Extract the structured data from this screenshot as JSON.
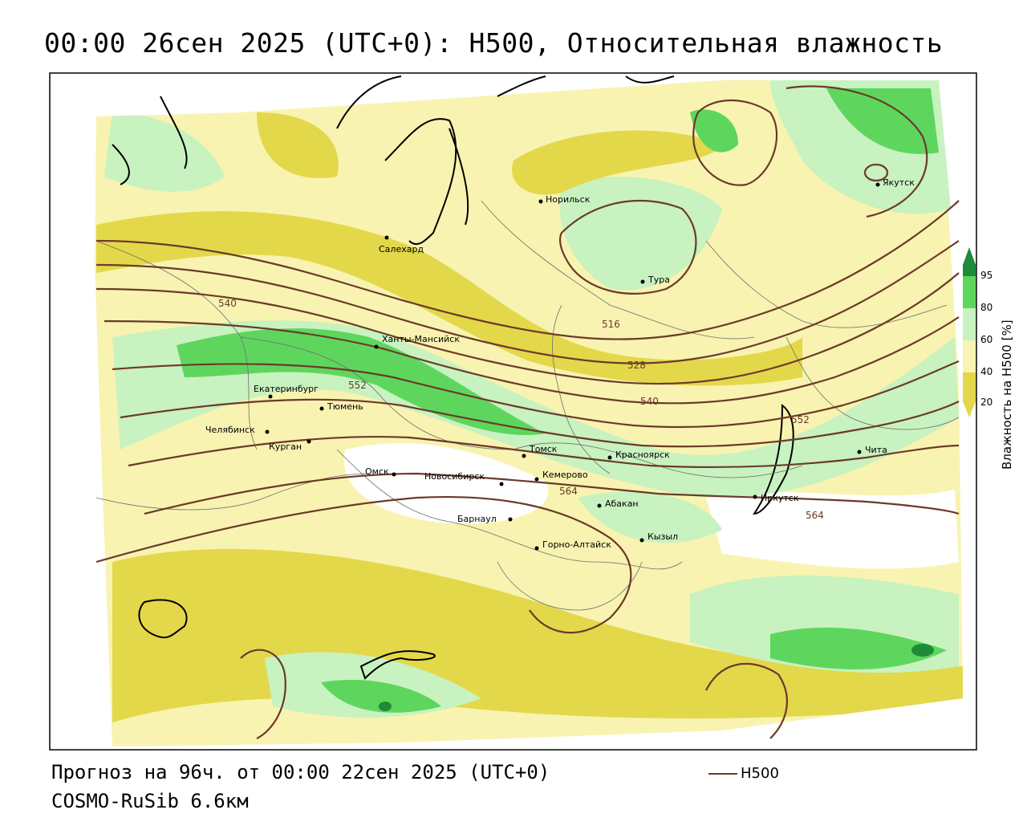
{
  "title": "00:00 26сен 2025 (UTC+0): H500, Относительная влажность",
  "footer": {
    "forecast": "Прогноз на 96ч. от 00:00 22сен 2025 (UTC+0)",
    "model": "COSMO-RuSib 6.6км"
  },
  "legend": {
    "line_label": "H500",
    "line_color": "#6b3a2a"
  },
  "colorbar": {
    "title": "Влажность на H500 [%]",
    "ticks": [
      "95",
      "80",
      "60",
      "40",
      "20"
    ],
    "colors": {
      "c20_40": "#e3d84a",
      "c40_60": "#f8f3b0",
      "c60_80": "#c8f2c0",
      "c80_95": "#5ed65e",
      "c95": "#1f8a3a"
    }
  },
  "cities": [
    {
      "name": "Якутск"
    },
    {
      "name": "Норильск"
    },
    {
      "name": "Салехард"
    },
    {
      "name": "Тура"
    },
    {
      "name": "Ханты-Мансийск"
    },
    {
      "name": "Екатеринбург"
    },
    {
      "name": "Тюмень"
    },
    {
      "name": "Челябинск"
    },
    {
      "name": "Курган"
    },
    {
      "name": "Омск"
    },
    {
      "name": "Новосибирск"
    },
    {
      "name": "Томск"
    },
    {
      "name": "Кемерово"
    },
    {
      "name": "Красноярск"
    },
    {
      "name": "Барнаул"
    },
    {
      "name": "Абакан"
    },
    {
      "name": "Горно-Алтайск"
    },
    {
      "name": "Кызыл"
    },
    {
      "name": "Иркутск"
    },
    {
      "name": "Чита"
    }
  ],
  "isolines": [
    "540",
    "516",
    "528",
    "552",
    "540",
    "552",
    "564",
    "564"
  ]
}
